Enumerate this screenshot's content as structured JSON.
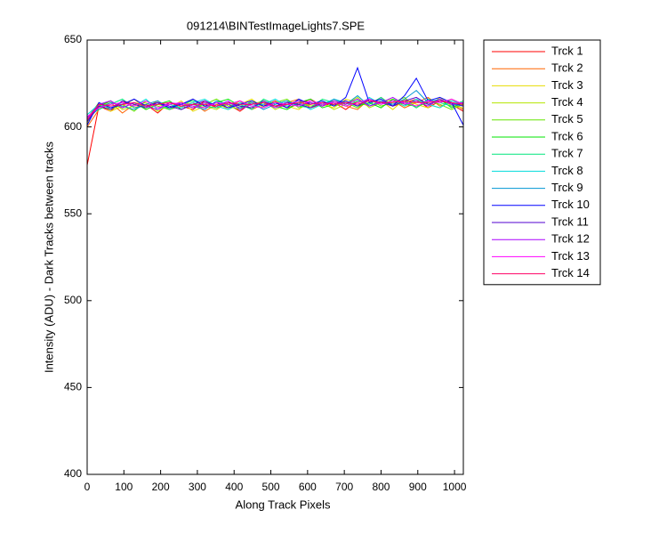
{
  "chart_data": {
    "type": "line",
    "title": "091214\\BINTestImageLights7.SPE",
    "x_label": "Along Track Pixels",
    "y_label": "Intensity (ADU) - Dark Tracks between tracks",
    "xlim": [
      0,
      1024
    ],
    "ylim": [
      400,
      650
    ],
    "xticks": [
      0,
      100,
      200,
      300,
      400,
      500,
      600,
      700,
      800,
      900,
      1000
    ],
    "yticks": [
      400,
      450,
      500,
      550,
      600,
      650
    ],
    "legend_position": "outside-right",
    "x": [
      0,
      32,
      64,
      96,
      128,
      160,
      192,
      224,
      256,
      288,
      320,
      352,
      384,
      416,
      448,
      480,
      512,
      544,
      576,
      608,
      640,
      672,
      704,
      736,
      768,
      800,
      832,
      864,
      896,
      928,
      960,
      992,
      1024
    ],
    "series": [
      {
        "name": "Trck 1",
        "color": "#ff0000",
        "values": [
          578,
          612,
          609,
          615,
          611,
          613,
          608,
          614,
          612,
          610,
          615,
          611,
          613,
          609,
          614,
          612,
          615,
          611,
          613,
          616,
          612,
          614,
          610,
          615,
          613,
          617,
          612,
          614,
          616,
          611,
          615,
          613,
          609
        ]
      },
      {
        "name": "Trck 2",
        "color": "#ff6400",
        "values": [
          600,
          610,
          614,
          608,
          613,
          611,
          615,
          610,
          612,
          614,
          609,
          613,
          611,
          615,
          610,
          613,
          612,
          614,
          616,
          611,
          613,
          615,
          612,
          610,
          616,
          613,
          615,
          611,
          614,
          617,
          612,
          614,
          610
        ]
      },
      {
        "name": "Trck 3",
        "color": "#e6dc00",
        "values": [
          602,
          613,
          609,
          612,
          616,
          610,
          613,
          611,
          615,
          609,
          612,
          614,
          610,
          613,
          616,
          611,
          614,
          612,
          610,
          615,
          613,
          611,
          616,
          614,
          612,
          615,
          610,
          616,
          613,
          611,
          617,
          612,
          611
        ]
      },
      {
        "name": "Trck 4",
        "color": "#b4e600",
        "values": [
          604,
          611,
          615,
          610,
          612,
          614,
          609,
          613,
          611,
          616,
          612,
          610,
          614,
          611,
          613,
          615,
          610,
          613,
          615,
          612,
          614,
          610,
          613,
          617,
          611,
          614,
          616,
          612,
          615,
          613,
          611,
          616,
          612
        ]
      },
      {
        "name": "Trck 5",
        "color": "#64e600",
        "values": [
          605,
          614,
          610,
          613,
          609,
          615,
          612,
          610,
          614,
          611,
          613,
          616,
          612,
          610,
          615,
          612,
          614,
          616,
          611,
          613,
          615,
          612,
          614,
          611,
          616,
          612,
          614,
          617,
          611,
          615,
          613,
          610,
          613
        ]
      },
      {
        "name": "Trck 6",
        "color": "#00e600",
        "values": [
          603,
          612,
          615,
          611,
          614,
          610,
          613,
          615,
          610,
          613,
          611,
          614,
          616,
          612,
          611,
          614,
          612,
          610,
          614,
          616,
          611,
          613,
          615,
          612,
          614,
          611,
          616,
          613,
          612,
          614,
          616,
          611,
          614
        ]
      },
      {
        "name": "Trck 7",
        "color": "#00e67d",
        "values": [
          606,
          610,
          613,
          616,
          611,
          612,
          614,
          610,
          613,
          615,
          612,
          611,
          614,
          613,
          610,
          616,
          613,
          615,
          612,
          611,
          616,
          614,
          612,
          615,
          613,
          617,
          612,
          615,
          611,
          616,
          614,
          612,
          615
        ]
      },
      {
        "name": "Trck 8",
        "color": "#00dcdc",
        "values": [
          607,
          613,
          611,
          614,
          612,
          616,
          610,
          613,
          611,
          614,
          616,
          612,
          610,
          614,
          612,
          613,
          616,
          612,
          614,
          610,
          613,
          616,
          614,
          612,
          617,
          613,
          615,
          612,
          616,
          613,
          611,
          615,
          613
        ]
      },
      {
        "name": "Trck 9",
        "color": "#0096d2",
        "values": [
          604,
          611,
          614,
          612,
          610,
          613,
          615,
          611,
          614,
          612,
          610,
          615,
          613,
          611,
          614,
          610,
          613,
          615,
          612,
          614,
          612,
          616,
          613,
          618,
          612,
          615,
          613,
          616,
          621,
          614,
          616,
          613,
          612
        ]
      },
      {
        "name": "Trck 10",
        "color": "#0000ff",
        "values": [
          601,
          614,
          611,
          613,
          616,
          612,
          614,
          611,
          613,
          616,
          612,
          614,
          611,
          613,
          615,
          612,
          614,
          611,
          616,
          613,
          615,
          612,
          617,
          634,
          614,
          616,
          612,
          618,
          628,
          615,
          617,
          614,
          601
        ]
      },
      {
        "name": "Trck 11",
        "color": "#5000d2",
        "values": [
          603,
          612,
          610,
          615,
          613,
          611,
          614,
          612,
          610,
          613,
          615,
          612,
          614,
          612,
          611,
          615,
          612,
          614,
          613,
          611,
          614,
          613,
          615,
          612,
          616,
          614,
          612,
          615,
          617,
          613,
          615,
          614,
          612
        ]
      },
      {
        "name": "Trck 12",
        "color": "#aa00ff",
        "values": [
          605,
          613,
          615,
          611,
          614,
          612,
          610,
          614,
          613,
          611,
          614,
          612,
          615,
          610,
          613,
          614,
          611,
          613,
          615,
          614,
          612,
          615,
          613,
          616,
          612,
          614,
          617,
          613,
          615,
          612,
          616,
          613,
          614
        ]
      },
      {
        "name": "Trck 13",
        "color": "#ff00ff",
        "values": [
          606,
          611,
          613,
          614,
          612,
          615,
          611,
          613,
          614,
          612,
          611,
          614,
          613,
          615,
          612,
          611,
          614,
          613,
          612,
          615,
          613,
          614,
          612,
          614,
          616,
          613,
          615,
          614,
          612,
          615,
          614,
          616,
          613
        ]
      },
      {
        "name": "Trck 14",
        "color": "#ff0064",
        "values": [
          604,
          613,
          612,
          613,
          614,
          612,
          613,
          614,
          612,
          613,
          613,
          612,
          614,
          613,
          613,
          614,
          612,
          613,
          614,
          613,
          614,
          613,
          614,
          613,
          615,
          614,
          614,
          615,
          614,
          614,
          615,
          614,
          613
        ]
      }
    ]
  }
}
